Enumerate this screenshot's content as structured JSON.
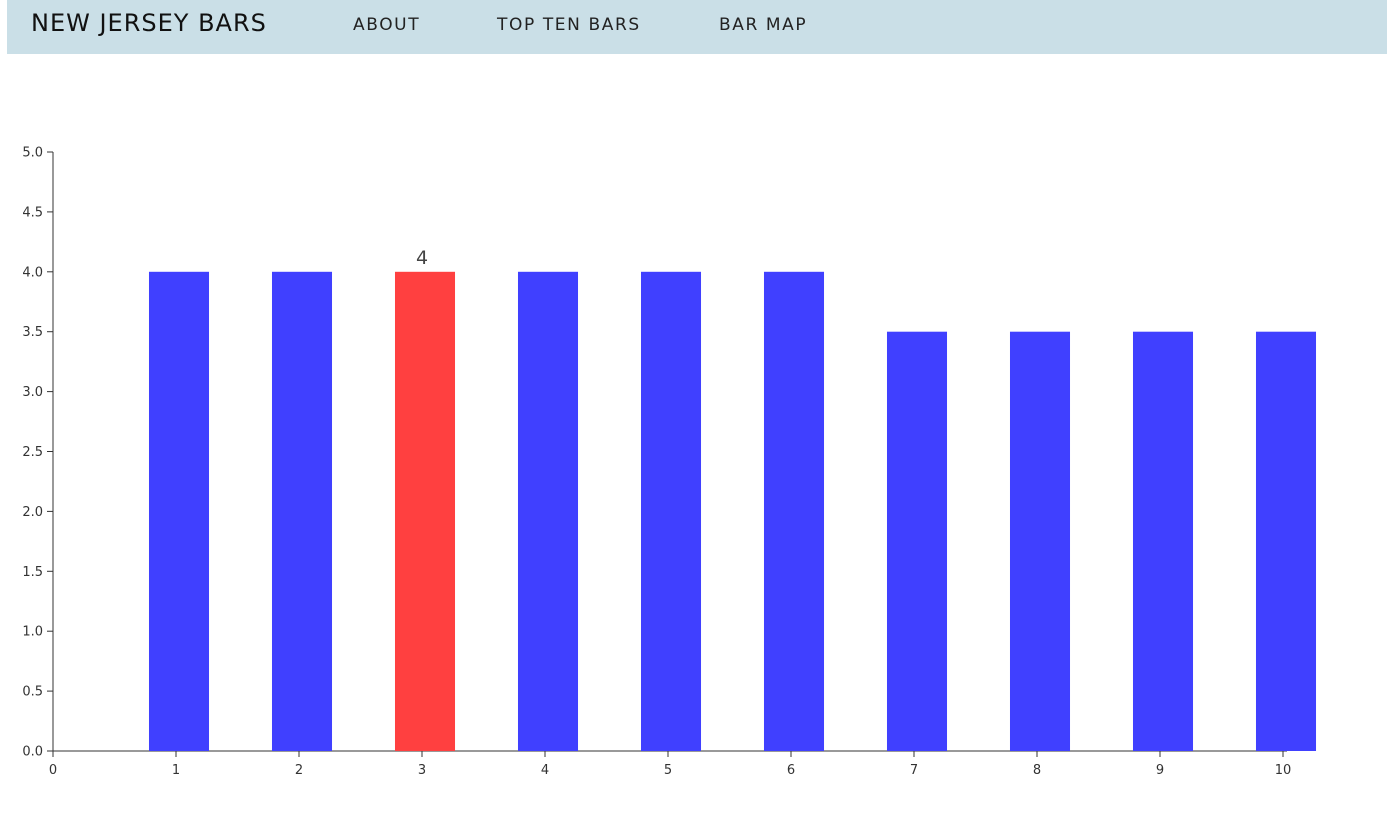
{
  "navbar": {
    "brand": "NEW JERSEY BARS",
    "links": [
      "ABOUT",
      "TOP TEN BARS",
      "BAR MAP"
    ]
  },
  "chart_data": {
    "type": "bar",
    "categories": [
      1,
      2,
      3,
      4,
      5,
      6,
      7,
      8,
      9,
      10
    ],
    "values": [
      4,
      4,
      4,
      4,
      4,
      4,
      3.5,
      3.5,
      3.5,
      3.5
    ],
    "highlighted_index": 2,
    "data_labels": [
      {
        "index": 2,
        "text": "4"
      }
    ],
    "xlim": [
      0,
      10
    ],
    "ylim": [
      0,
      5
    ],
    "x_ticks": [
      "0",
      "1",
      "2",
      "3",
      "4",
      "5",
      "6",
      "7",
      "8",
      "9",
      "10"
    ],
    "y_ticks": [
      "0.0",
      "0.5",
      "1.0",
      "1.5",
      "2.0",
      "2.5",
      "3.0",
      "3.5",
      "4.0",
      "4.5",
      "5.0"
    ],
    "title": "",
    "xlabel": "",
    "ylabel": "",
    "grid": false,
    "colors": {
      "bar": "#4040ff",
      "highlight": "#ff4040",
      "axis": "#333333"
    }
  }
}
